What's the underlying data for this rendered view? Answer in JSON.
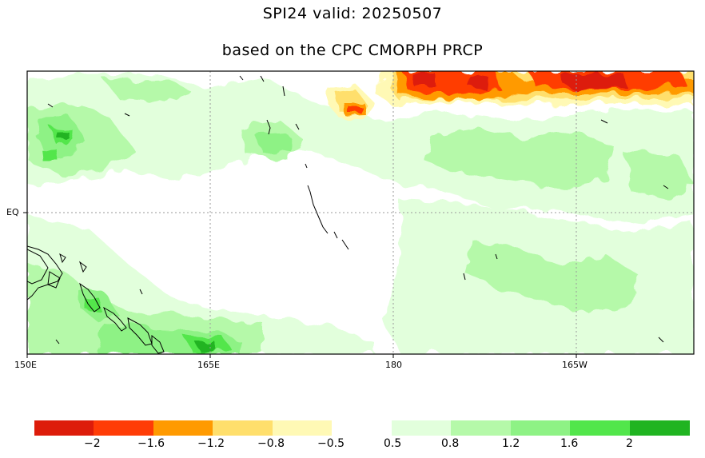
{
  "title": "SPI24   valid: 20250507",
  "subtitle": "based on the CPC CMORPH PRCP",
  "map": {
    "x_ticks": [
      "150E",
      "165E",
      "180",
      "165W"
    ],
    "y_ticks": [
      "EQ"
    ],
    "grid_lines": true
  },
  "colorbar": {
    "negative": {
      "colors": [
        "#dd1c0a",
        "#ff3c06",
        "#ff9a00",
        "#ffdf6c",
        "#fff9b5"
      ],
      "labels": [
        "−2",
        "−1.6",
        "−1.2",
        "−0.8",
        "−0.5"
      ]
    },
    "positive": {
      "colors": [
        "#e2ffdc",
        "#b5f9a9",
        "#8ef285",
        "#52e64b",
        "#20b421"
      ],
      "labels": [
        "0.5",
        "0.8",
        "1.2",
        "1.6",
        "2"
      ]
    }
  }
}
